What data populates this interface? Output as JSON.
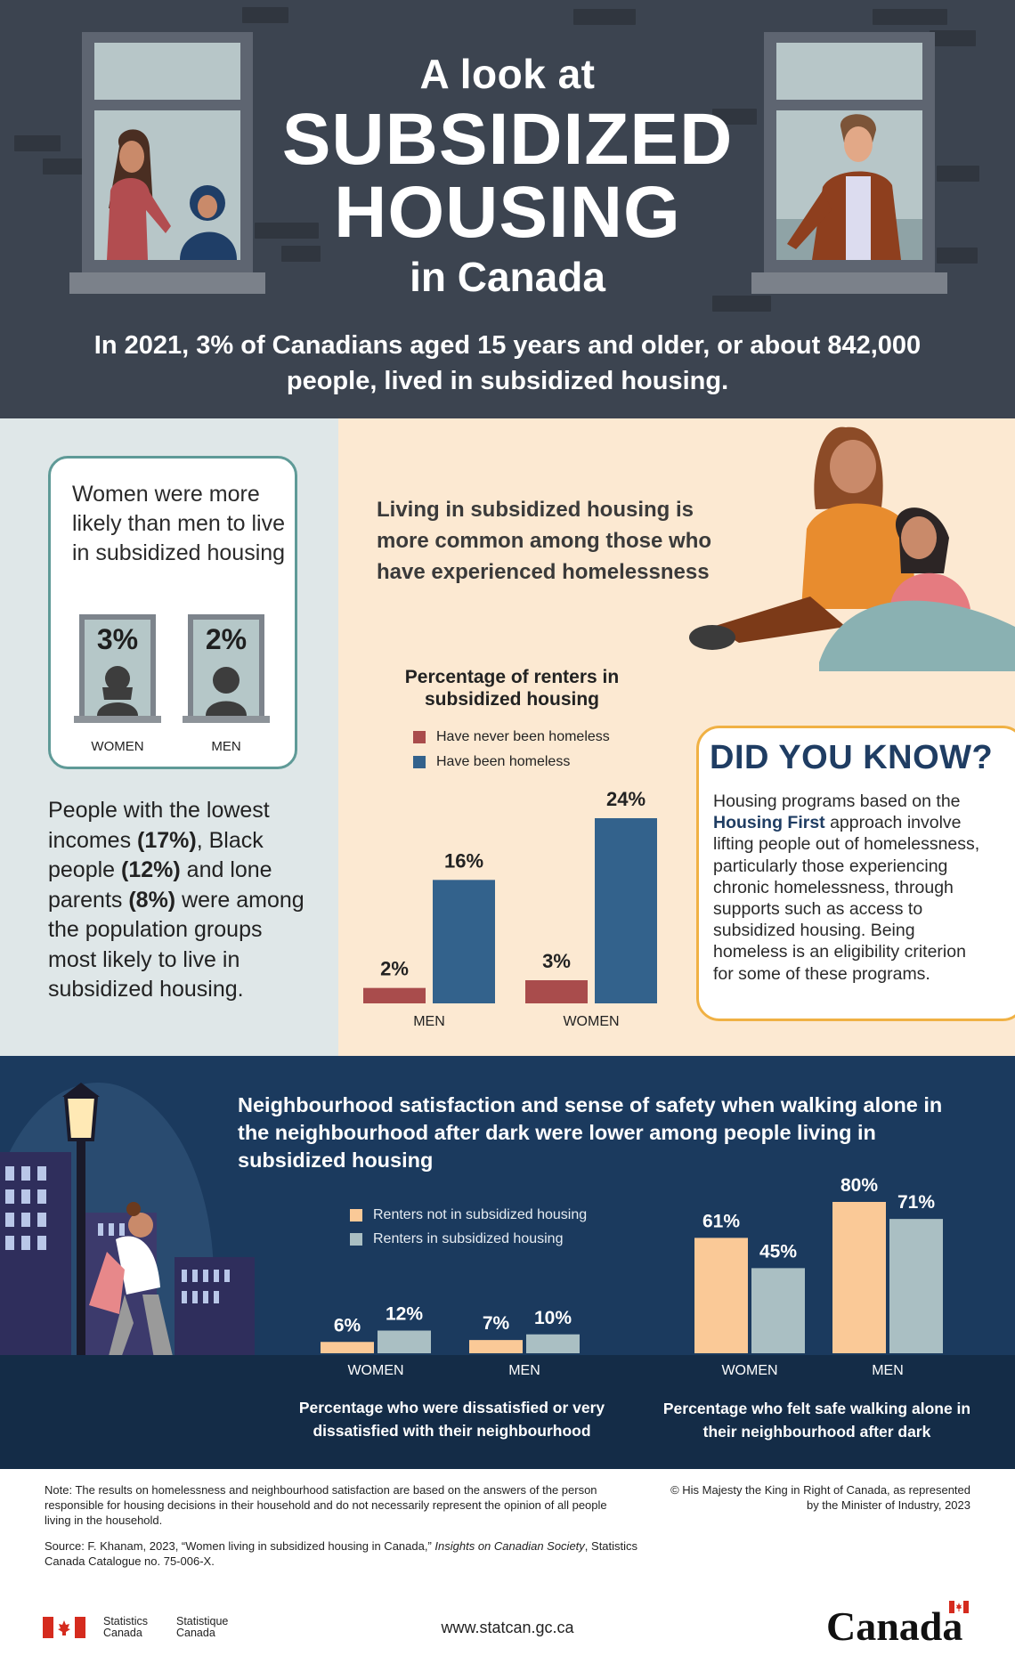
{
  "header": {
    "title_pre": "A look at",
    "title_main_line1": "SUBSIDIZED",
    "title_main_line2": "HOUSING",
    "title_post": "in Canada",
    "intro": "In 2021, 3% of Canadians aged 15 years and older, or about 842,000 people, lived in subsidized housing."
  },
  "women_card": {
    "text": "Women were more likely than men to live in subsidized housing",
    "women_pct": "3%",
    "men_pct": "2%",
    "women_label": "WOMEN",
    "men_label": "MEN"
  },
  "lowest_income": {
    "part1": "People with the lowest incomes ",
    "pct1": "(17%)",
    "part2": ", Black people ",
    "pct2": "(12%)",
    "part3": " and lone parents ",
    "pct3": "(8%)",
    "part4": " were among the population groups most likely to live in subsidized housing."
  },
  "homelessness": {
    "headline": "Living in subsidized housing is more common among those who have experienced homelessness"
  },
  "did_you_know": {
    "title": "DID YOU KNOW?",
    "text_before": "Housing programs based on the ",
    "highlight": "Housing First",
    "text_after": " approach involve lifting people out of homelessness, particularly those experiencing chronic homelessness, through supports such as access to subsidized housing. Being homeless is an eligibility criterion for some of these programs."
  },
  "neighbourhood": {
    "headline": "Neighbourhood satisfaction and sense of safety when walking alone in the neighbourhood after dark were lower among people living in subsidized housing",
    "caption_dissatisfied": "Percentage who were dissatisfied or very dissatisfied with their neighbourhood",
    "caption_safe": "Percentage who felt safe walking alone in their neighbourhood after dark"
  },
  "colors": {
    "never_homeless": "#a94c4c",
    "been_homeless": "#33628c",
    "not_subsidized": "#fac997",
    "subsidized": "#aabfc3",
    "header_bg": "#3c4450",
    "navy": "#1b3a5e",
    "accent_orange": "#f0b144"
  },
  "chart_data": [
    {
      "type": "bar",
      "title": "Percentage of renters in subsidized housing",
      "categories": [
        "MEN",
        "WOMEN"
      ],
      "series": [
        {
          "name": "Have never been homeless",
          "values": [
            2,
            3
          ],
          "labels": [
            "2%",
            "3%"
          ]
        },
        {
          "name": "Have been homeless",
          "values": [
            16,
            24
          ],
          "labels": [
            "16%",
            "24%"
          ]
        }
      ],
      "ylim": [
        0,
        24
      ],
      "legend": "top-left"
    },
    {
      "type": "bar",
      "title": "Percentage who were dissatisfied or very dissatisfied with their neighbourhood",
      "categories": [
        "WOMEN",
        "MEN"
      ],
      "series": [
        {
          "name": "Renters not in subsidized housing",
          "values": [
            6,
            7
          ],
          "labels": [
            "6%",
            "7%"
          ]
        },
        {
          "name": "Renters in subsidized housing",
          "values": [
            12,
            10
          ],
          "labels": [
            "12%",
            "10%"
          ]
        }
      ],
      "ylim": [
        0,
        80
      ],
      "legend": "top-left"
    },
    {
      "type": "bar",
      "title": "Percentage who felt safe walking alone in their neighbourhood after dark",
      "categories": [
        "WOMEN",
        "MEN"
      ],
      "series": [
        {
          "name": "Renters not in subsidized housing",
          "values": [
            61,
            80
          ],
          "labels": [
            "61%",
            "80%"
          ]
        },
        {
          "name": "Renters in subsidized housing",
          "values": [
            45,
            71
          ],
          "labels": [
            "45%",
            "71%"
          ]
        }
      ],
      "ylim": [
        0,
        80
      ]
    }
  ],
  "footer": {
    "note": "Note: The results on homelessness and neighbourhood satisfaction are based on the answers of the person responsible for housing decisions in their household and do not necessarily represent the opinion of all people living in the household.",
    "source_before": "Source: F. Khanam, 2023, “Women living in subsidized housing in Canada,” ",
    "source_italic": "Insights on Canadian Society",
    "source_after": ", Statistics Canada Catalogue no. 75-006-X.",
    "copyright": "© His Majesty the King in Right of Canada, as represented by the Minister of Industry, 2023",
    "statcan_en": "Statistics Canada",
    "statcan_fr": "Statistique Canada",
    "website": "www.statcan.gc.ca",
    "wordmark": "Canada"
  }
}
